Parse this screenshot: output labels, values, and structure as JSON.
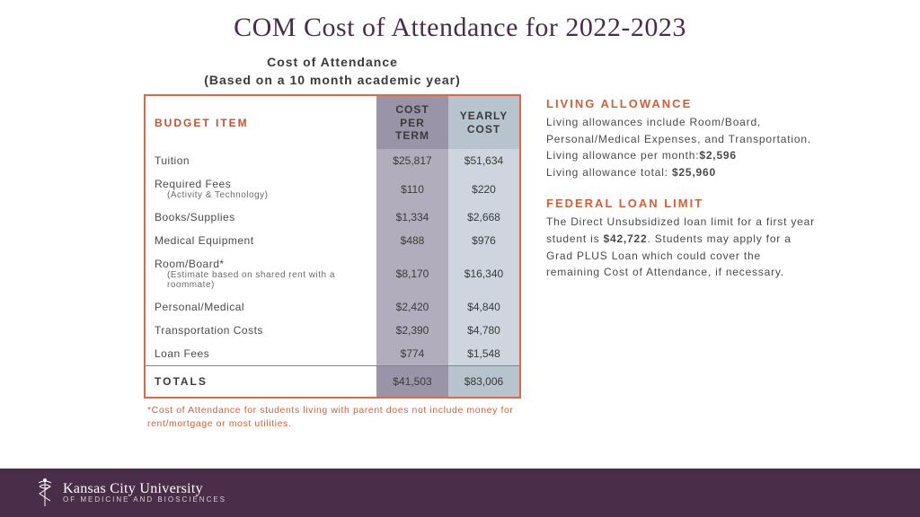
{
  "title": "COM Cost of Attendance for 2022-2023",
  "table": {
    "heading_line1": "Cost of Attendance",
    "heading_line2": "(Based on a 10 month academic year)",
    "col_budget": "BUDGET ITEM",
    "col_cpt_l1": "COST PER",
    "col_cpt_l2": "TERM",
    "col_yc_l1": "YEARLY",
    "col_yc_l2": "COST",
    "rows": [
      {
        "item": "Tuition",
        "sub": "",
        "cpt": "$25,817",
        "yc": "$51,634"
      },
      {
        "item": "Required Fees",
        "sub": "(Activity & Technology)",
        "cpt": "$110",
        "yc": "$220"
      },
      {
        "item": "Books/Supplies",
        "sub": "",
        "cpt": "$1,334",
        "yc": "$2,668"
      },
      {
        "item": "Medical Equipment",
        "sub": "",
        "cpt": "$488",
        "yc": "$976"
      },
      {
        "item": "Room/Board*",
        "sub": "(Estimate based on shared rent with a roommate)",
        "cpt": "$8,170",
        "yc": "$16,340"
      },
      {
        "item": "Personal/Medical",
        "sub": "",
        "cpt": "$2,420",
        "yc": "$4,840"
      },
      {
        "item": "Transportation Costs",
        "sub": "",
        "cpt": "$2,390",
        "yc": "$4,780"
      },
      {
        "item": "Loan Fees",
        "sub": "",
        "cpt": "$774",
        "yc": "$1,548"
      }
    ],
    "totals_label": "TOTALS",
    "totals_cpt": "$41,503",
    "totals_yc": "$83,006",
    "footnote": "*Cost of Attendance for students living with parent does not include money for rent/mortgage or most utilities."
  },
  "sidebar": {
    "la_heading": "LIVING ALLOWANCE",
    "la_body_1": "Living allowances include Room/Board, Personal/Medical Expenses, and Transportation.",
    "la_body_2a": "Living allowance per month:",
    "la_body_2b": "$2,596",
    "la_body_3a": "Living allowance total: ",
    "la_body_3b": "$25,960",
    "fl_heading": "FEDERAL LOAN LIMIT",
    "fl_body_1a": "The Direct Unsubsidized loan limit for a first year student is ",
    "fl_body_1b": "$42,722",
    "fl_body_1c": ". Students may apply for a Grad PLUS Loan which could cover the remaining Cost of Attendance, if necessary."
  },
  "footer": {
    "university": "Kansas City University",
    "subtitle": "OF MEDICINE AND BIOSCIENCES"
  },
  "colors": {
    "title": "#4a2e49",
    "accent": "#d35f3a",
    "table_border": "#d9694a",
    "cpt_header": "#9a94a8",
    "yc_header": "#b7c3cd",
    "cpt_body": "#b2adbd",
    "yc_body": "#cdd6de",
    "footer_bg": "#4a2e49"
  }
}
